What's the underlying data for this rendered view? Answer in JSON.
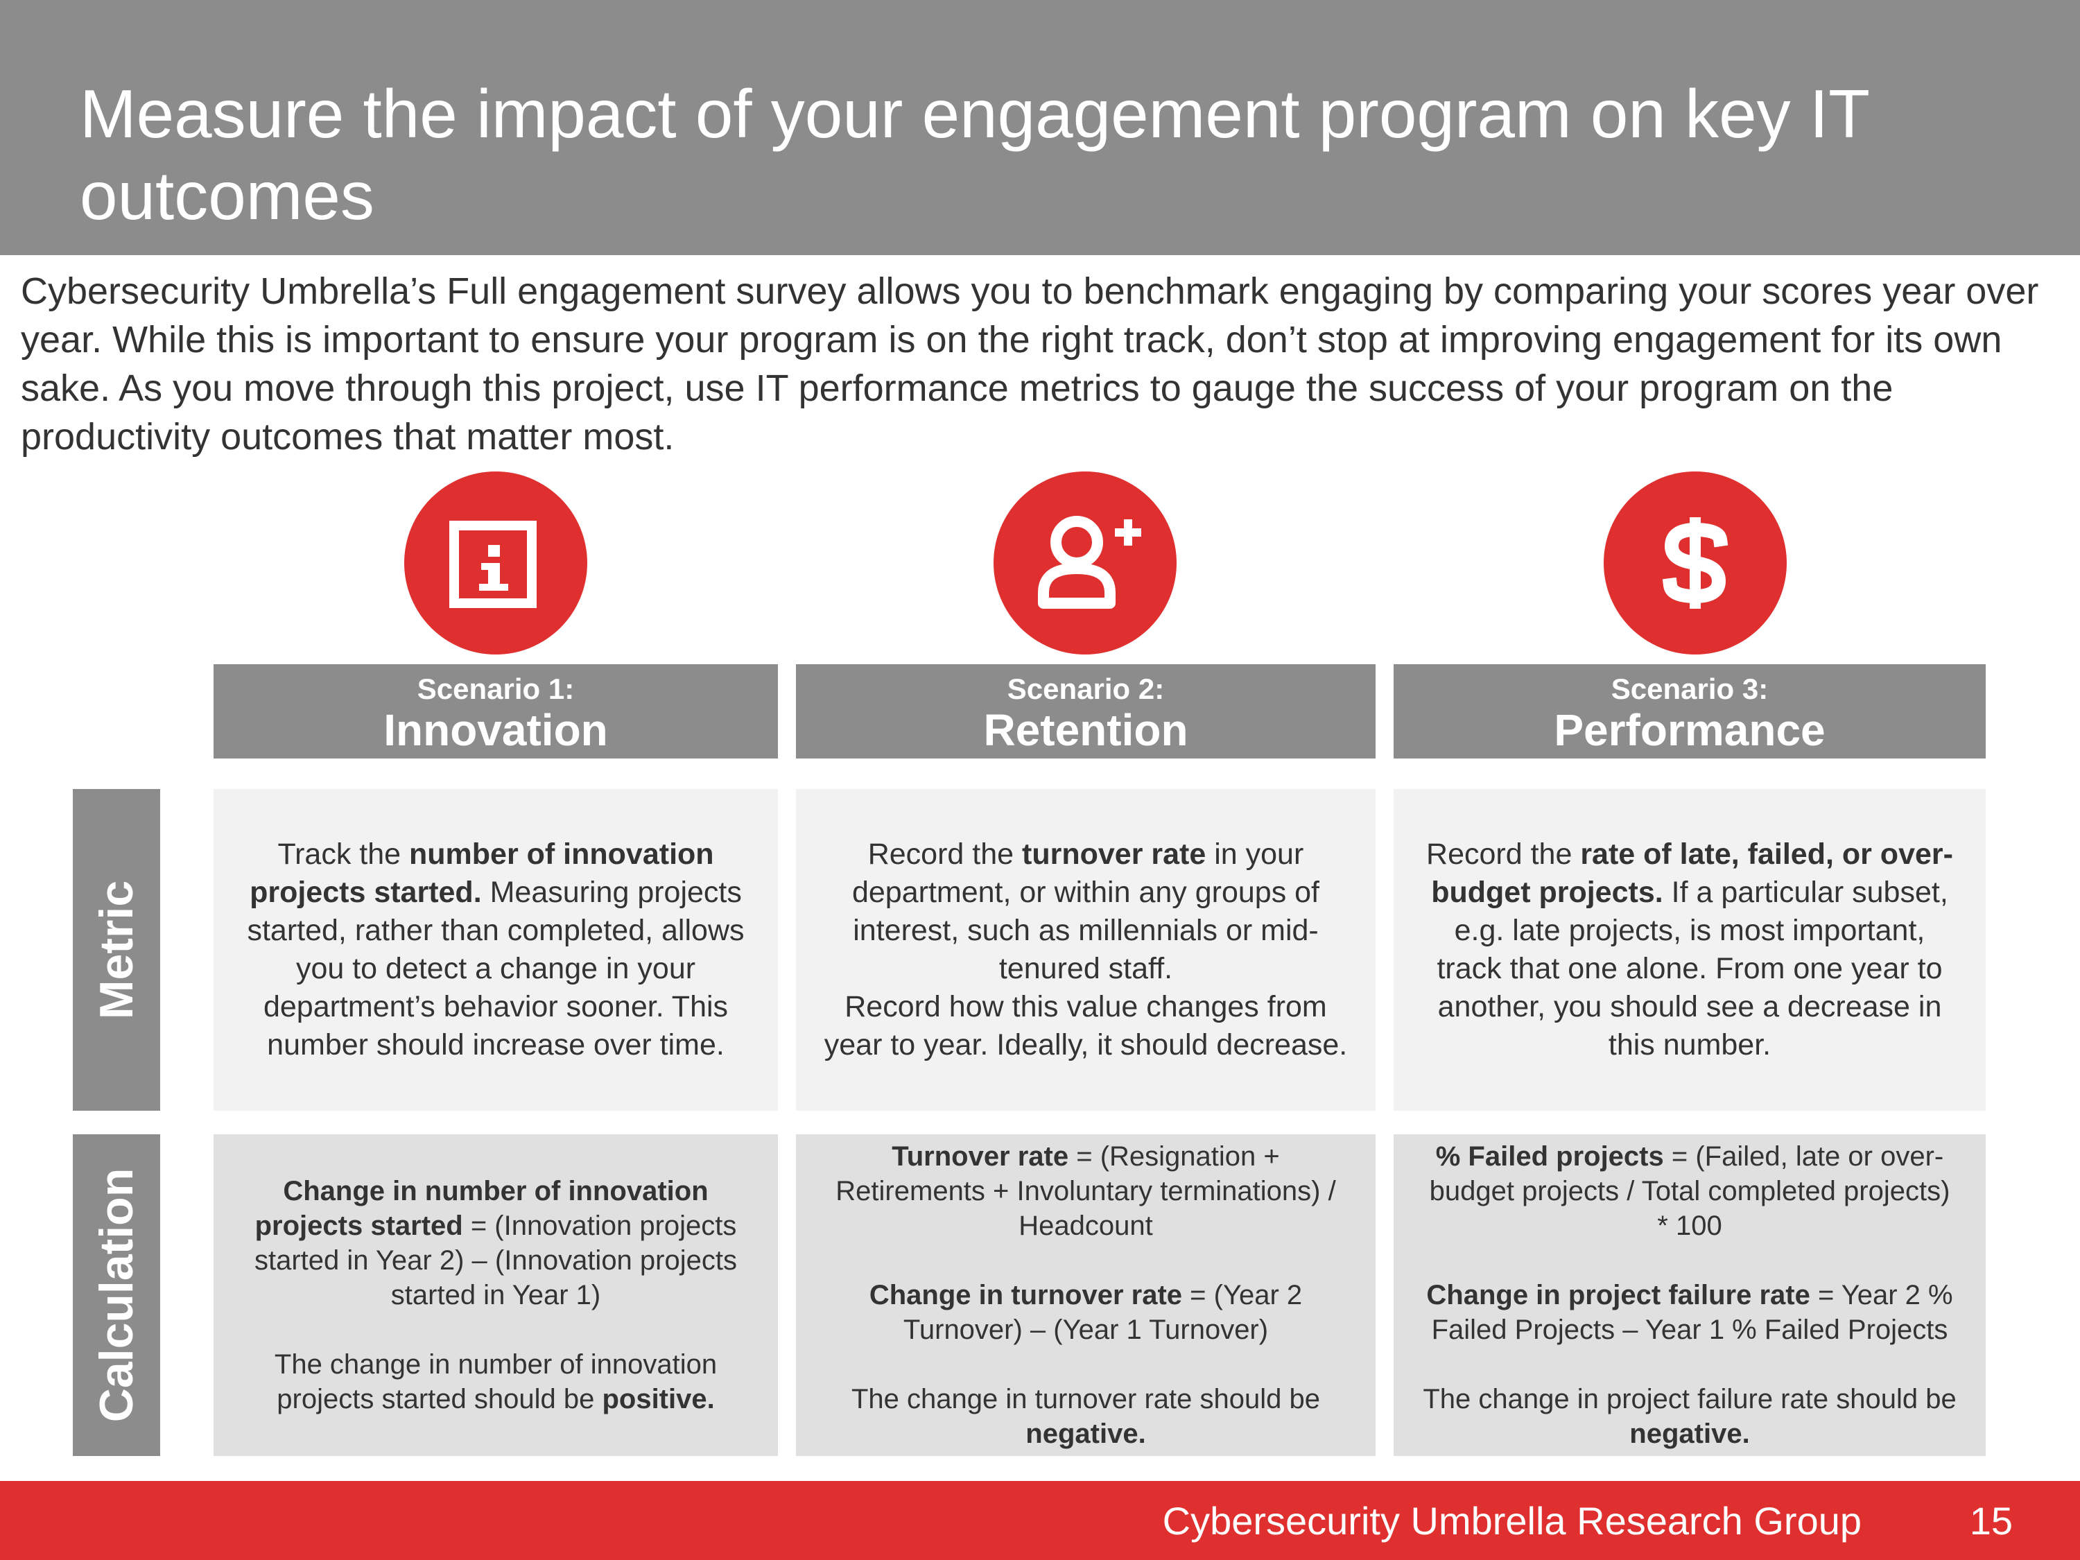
{
  "header": {
    "title": "Measure the impact of your engagement program on key IT outcomes"
  },
  "intro": "Cybersecurity Umbrella’s Full engagement survey allows you to benchmark engaging by comparing your scores year over year. While this is important to ensure your program is on the right track, don’t stop at improving engagement for its own sake. As you move through this project, use IT performance metrics to gauge the success of your program on the productivity outcomes that matter most.",
  "icons": [
    "info-icon",
    "add-user-icon",
    "dollar-icon"
  ],
  "colors": {
    "accent": "#e02f2f",
    "header_gray": "#8c8c8c",
    "metric_bg": "#f2f2f2",
    "calc_bg": "#e0e0e0"
  },
  "rows": {
    "metric": "Metric",
    "calculation": "Calculation"
  },
  "scenarios": [
    {
      "label": "Scenario 1:",
      "name": "Innovation",
      "metric": {
        "t1": "Track the ",
        "b1": "number of innovation projects started.",
        "t2": " Measuring projects started, rather than completed, allows you to detect a change in your department’s behavior sooner. This number should increase over time."
      },
      "calc": {
        "b1": "Change in number of innovation projects started",
        "t1": " = (Innovation projects started in Year 2) – (Innovation projects started in Year 1)",
        "t2": "The change in number of innovation projects started should be ",
        "b2": "positive."
      }
    },
    {
      "label": "Scenario 2:",
      "name": "Retention",
      "metric": {
        "t1": "Record the ",
        "b1": "turnover rate",
        "t2": " in your department, or within any groups of interest, such as millennials or mid-tenured staff.",
        "t3": "Record how this value changes from year to year. Ideally, it should decrease."
      },
      "calc": {
        "b1": "Turnover rate",
        "t1": " = (Resignation + Retirements + Involuntary terminations) / Headcount",
        "b2": "Change in turnover rate",
        "t2": " = (Year 2 Turnover) – (Year 1 Turnover)",
        "t3": "The change in turnover rate should be ",
        "b3": "negative."
      }
    },
    {
      "label": "Scenario 3:",
      "name": "Performance",
      "metric": {
        "t1": "Record the ",
        "b1": "rate of late, failed, or over-budget projects.",
        "t2": " If a particular subset, e.g. late projects, is most important, track that one alone. From one year to another, you should see a decrease in this number."
      },
      "calc": {
        "b1": "% Failed projects",
        "t1": " = (Failed, late or over-budget projects / Total completed projects) * 100",
        "b2": "Change in project failure rate",
        "t2": " = Year 2 % Failed Projects – Year 1 % Failed Projects",
        "t3": "The change in project failure rate should be ",
        "b3": "negative."
      }
    }
  ],
  "footer": {
    "text": "Cybersecurity Umbrella Research Group",
    "page_number": "15"
  }
}
